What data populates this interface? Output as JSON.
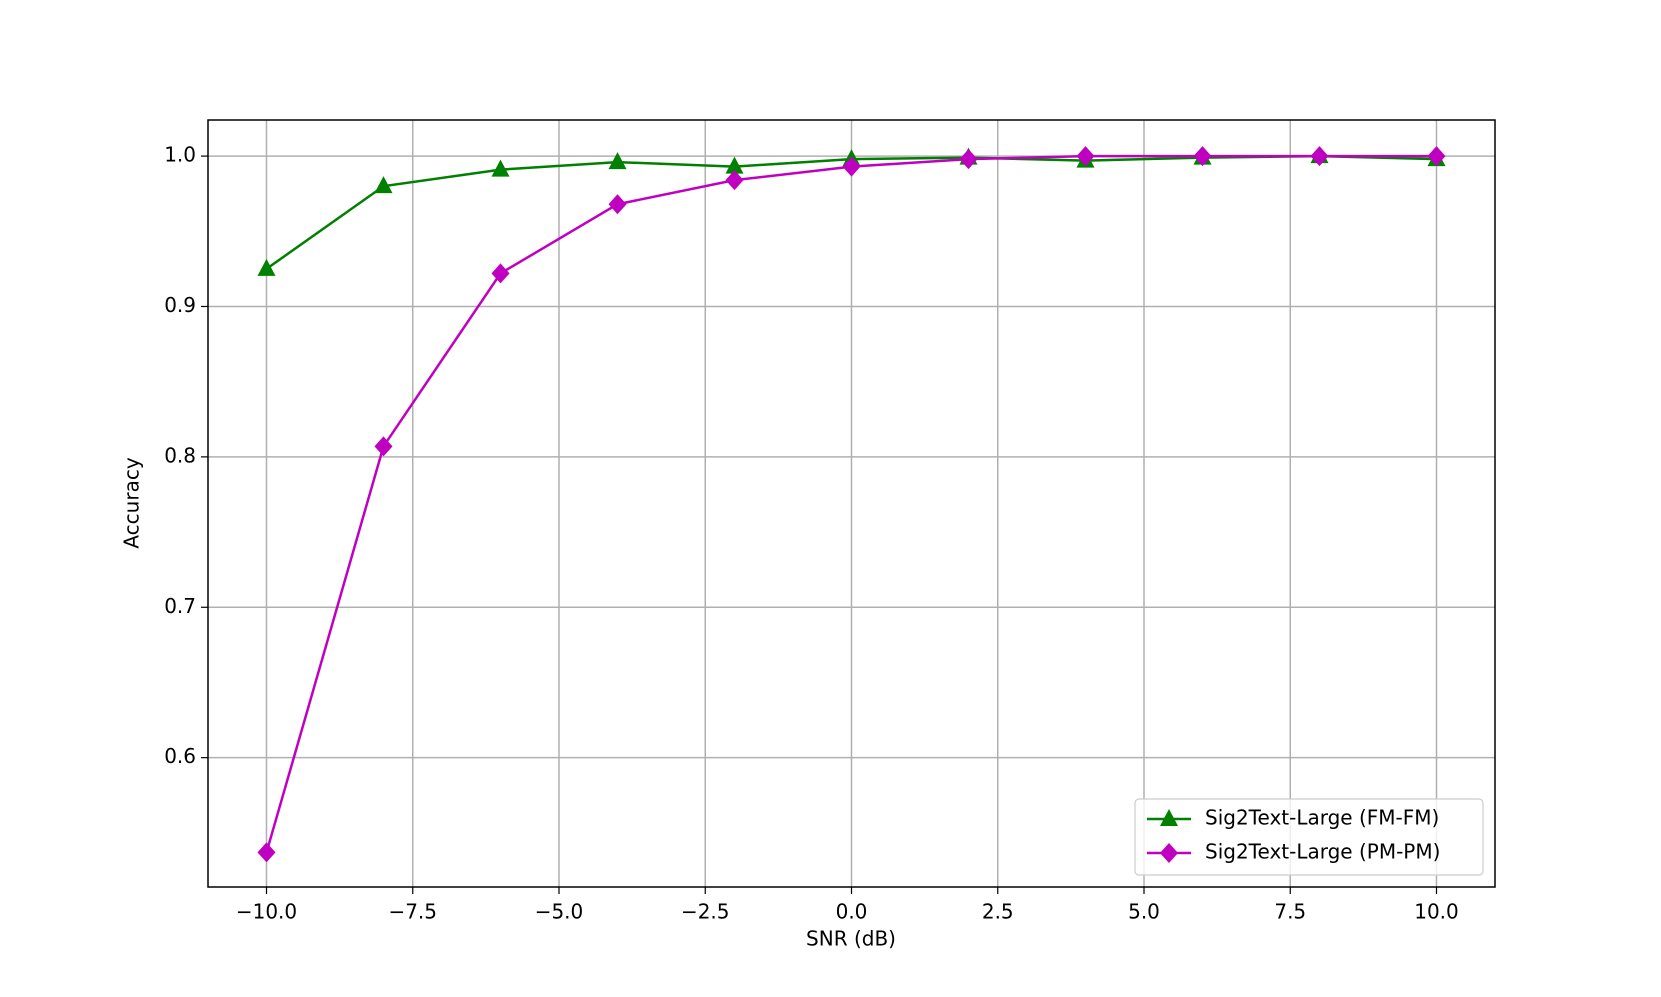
{
  "chart_data": {
    "type": "line",
    "x_label": "SNR (dB)",
    "y_label": "Accuracy",
    "x": [
      -10,
      -8,
      -6,
      -4,
      -2,
      0,
      2,
      4,
      6,
      8,
      10
    ],
    "series": [
      {
        "name": "Sig2Text-Large (FM-FM)",
        "color": "#008000",
        "marker": "triangle",
        "values": [
          0.925,
          0.98,
          0.991,
          0.996,
          0.993,
          0.998,
          0.999,
          0.997,
          0.999,
          1.0,
          0.998
        ]
      },
      {
        "name": "Sig2Text-Large (PM-PM)",
        "color": "#c000c0",
        "marker": "diamond",
        "values": [
          0.537,
          0.807,
          0.922,
          0.968,
          0.984,
          0.993,
          0.998,
          1.0,
          1.0,
          1.0,
          1.0
        ]
      }
    ],
    "xlim": [
      -11,
      11
    ],
    "xticks": [
      {
        "value": -10,
        "label": "−10.0"
      },
      {
        "value": -7.5,
        "label": "−7.5"
      },
      {
        "value": -5,
        "label": "−5.0"
      },
      {
        "value": -2.5,
        "label": "−2.5"
      },
      {
        "value": 0,
        "label": "0.0"
      },
      {
        "value": 2.5,
        "label": "2.5"
      },
      {
        "value": 5,
        "label": "5.0"
      },
      {
        "value": 7.5,
        "label": "7.5"
      },
      {
        "value": 10,
        "label": "10.0"
      }
    ],
    "ylim": [
      0.514,
      1.024
    ],
    "yticks": [
      0.6,
      0.7,
      0.8,
      0.9,
      {
        "value": 1,
        "label": "1.0"
      }
    ],
    "grid": true,
    "legend": "lower right"
  }
}
